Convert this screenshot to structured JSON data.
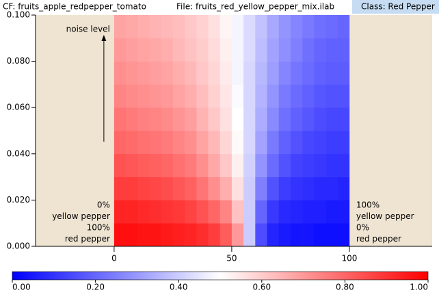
{
  "header": {
    "cf": "CF: fruits_apple_redpepper_tomato",
    "file": "File: fruits_red_yellow_pepper_mix.ilab",
    "class": "Class: Red Pepper"
  },
  "chart_data": {
    "type": "heatmap",
    "annotations": {
      "noise": "noise level",
      "left": [
        "0%",
        "yellow pepper",
        "100%",
        "red pepper"
      ],
      "right": [
        "100%",
        "yellow pepper",
        "0%",
        "red pepper"
      ]
    },
    "xlim": [
      -33.4,
      135.2
    ],
    "xticks": [
      0,
      50,
      100
    ],
    "ylim": [
      0,
      0.1
    ],
    "yticks": [
      {
        "value": 0,
        "label": "0.000"
      },
      {
        "value": 0.02,
        "label": "0.020"
      },
      {
        "value": 0.04,
        "label": "0.040"
      },
      {
        "value": 0.06,
        "label": "0.060"
      },
      {
        "value": 0.08,
        "label": "0.080"
      },
      {
        "value": 0.1,
        "label": "0.100"
      }
    ],
    "xbins": [
      0,
      5,
      10,
      15,
      20,
      25,
      30,
      35,
      40,
      45,
      50,
      55,
      60,
      65,
      70,
      75,
      80,
      85,
      90,
      95,
      100
    ],
    "ybins": [
      0,
      0.01,
      0.02,
      0.03,
      0.04,
      0.05,
      0.06,
      0.07,
      0.08,
      0.09,
      0.1
    ],
    "z": [
      [
        0.97,
        0.97,
        0.96,
        0.96,
        0.95,
        0.94,
        0.93,
        0.91,
        0.88,
        0.82,
        0.7,
        0.4,
        0.15,
        0.07,
        0.05,
        0.04,
        0.04,
        0.03,
        0.03,
        0.03
      ],
      [
        0.93,
        0.93,
        0.92,
        0.91,
        0.9,
        0.89,
        0.87,
        0.84,
        0.8,
        0.74,
        0.62,
        0.4,
        0.2,
        0.11,
        0.08,
        0.07,
        0.06,
        0.06,
        0.05,
        0.05
      ],
      [
        0.88,
        0.88,
        0.87,
        0.86,
        0.85,
        0.83,
        0.81,
        0.77,
        0.72,
        0.66,
        0.56,
        0.4,
        0.25,
        0.16,
        0.12,
        0.1,
        0.09,
        0.08,
        0.08,
        0.07
      ],
      [
        0.84,
        0.83,
        0.82,
        0.81,
        0.8,
        0.78,
        0.76,
        0.72,
        0.67,
        0.61,
        0.53,
        0.41,
        0.29,
        0.21,
        0.16,
        0.13,
        0.12,
        0.11,
        0.1,
        0.1
      ],
      [
        0.8,
        0.79,
        0.78,
        0.77,
        0.76,
        0.74,
        0.72,
        0.68,
        0.64,
        0.58,
        0.51,
        0.42,
        0.32,
        0.24,
        0.19,
        0.16,
        0.14,
        0.13,
        0.12,
        0.12
      ],
      [
        0.77,
        0.76,
        0.75,
        0.74,
        0.73,
        0.71,
        0.69,
        0.65,
        0.61,
        0.56,
        0.5,
        0.42,
        0.34,
        0.27,
        0.22,
        0.19,
        0.17,
        0.15,
        0.14,
        0.14
      ],
      [
        0.74,
        0.73,
        0.72,
        0.71,
        0.7,
        0.68,
        0.66,
        0.63,
        0.59,
        0.55,
        0.49,
        0.42,
        0.35,
        0.29,
        0.24,
        0.21,
        0.19,
        0.17,
        0.16,
        0.16
      ],
      [
        0.72,
        0.71,
        0.7,
        0.69,
        0.68,
        0.66,
        0.64,
        0.61,
        0.58,
        0.54,
        0.48,
        0.42,
        0.36,
        0.31,
        0.26,
        0.23,
        0.21,
        0.19,
        0.18,
        0.18
      ],
      [
        0.7,
        0.69,
        0.68,
        0.67,
        0.66,
        0.64,
        0.62,
        0.6,
        0.57,
        0.53,
        0.48,
        0.43,
        0.37,
        0.32,
        0.28,
        0.25,
        0.22,
        0.2,
        0.19,
        0.19
      ],
      [
        0.68,
        0.67,
        0.66,
        0.65,
        0.64,
        0.63,
        0.61,
        0.59,
        0.56,
        0.52,
        0.48,
        0.43,
        0.38,
        0.33,
        0.29,
        0.26,
        0.24,
        0.22,
        0.21,
        0.2
      ]
    ],
    "colormap": [
      "#0000ff",
      "#ffffff",
      "#ff0000"
    ],
    "clim": [
      0,
      1
    ],
    "cticks": [
      {
        "value": 0,
        "label": "0.00"
      },
      {
        "value": 0.2,
        "label": "0.20"
      },
      {
        "value": 0.4,
        "label": "0.40"
      },
      {
        "value": 0.6,
        "label": "0.60"
      },
      {
        "value": 0.8,
        "label": "0.80"
      },
      {
        "value": 1,
        "label": "1.00"
      }
    ],
    "background": "#efe4d2"
  }
}
